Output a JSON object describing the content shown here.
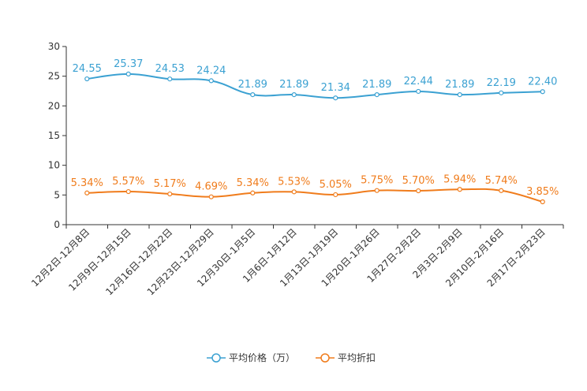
{
  "chart_data": {
    "type": "line",
    "title": "",
    "xlabel": "",
    "ylabel": "",
    "ylim": [
      0,
      30
    ],
    "yticks": [
      0,
      5,
      10,
      15,
      20,
      25,
      30
    ],
    "categories": [
      "12月2日-12月8日",
      "12月9日-12月15日",
      "12月16日-12月22日",
      "12月23日-12月29日",
      "12月30日-1月5日",
      "1月6日-1月12日",
      "1月13日-1月19日",
      "1月20日-1月26日",
      "1月27日-2月2日",
      "2月3日-2月9日",
      "2月10日-2月16日",
      "2月17日-2月23日"
    ],
    "series": [
      {
        "name": "平均价格（万）",
        "color": "#3ba1d2",
        "values": [
          24.55,
          25.37,
          24.53,
          24.24,
          21.89,
          21.89,
          21.34,
          21.89,
          22.44,
          21.89,
          22.19,
          22.4
        ],
        "labels": [
          "24.55",
          "25.37",
          "24.53",
          "24.24",
          "21.89",
          "21.89",
          "21.34",
          "21.89",
          "22.44",
          "21.89",
          "22.19",
          "22.40"
        ]
      },
      {
        "name": "平均折扣",
        "color": "#f07c1c",
        "values": [
          5.34,
          5.57,
          5.17,
          4.69,
          5.34,
          5.53,
          5.05,
          5.75,
          5.7,
          5.94,
          5.74,
          3.85
        ],
        "labels": [
          "5.34%",
          "5.57%",
          "5.17%",
          "4.69%",
          "5.34%",
          "5.53%",
          "5.05%",
          "5.75%",
          "5.70%",
          "5.94%",
          "5.74%",
          "3.85%"
        ]
      }
    ],
    "legend_position": "bottom-center"
  }
}
